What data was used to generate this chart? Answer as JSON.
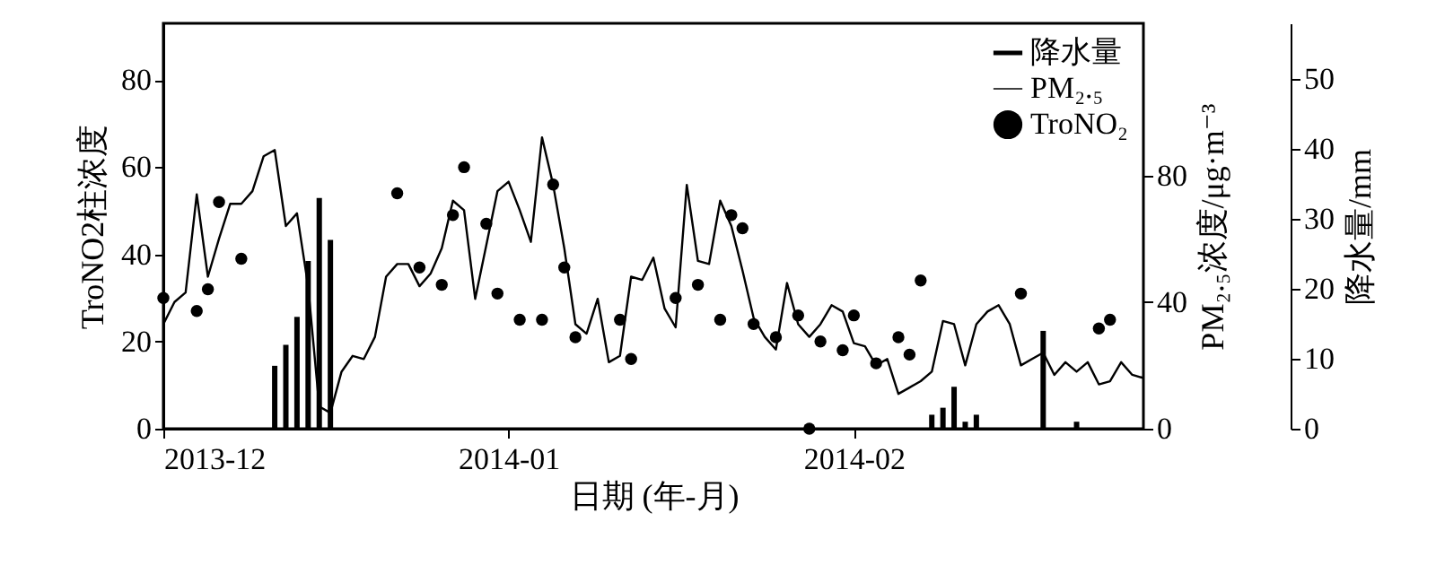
{
  "chart_data": {
    "type": "line",
    "xlabel": "日期 (年-月)",
    "ylabel": "TroNO2柱浓度",
    "y2label": "PM₂.₅浓度/μg·m⁻³",
    "y3label": "降水量/mm",
    "x": [
      "2013-12-01",
      "2013-12-02",
      "2013-12-03",
      "2013-12-04",
      "2013-12-05",
      "2013-12-06",
      "2013-12-07",
      "2013-12-08",
      "2013-12-09",
      "2013-12-10",
      "2013-12-11",
      "2013-12-12",
      "2013-12-13",
      "2013-12-14",
      "2013-12-15",
      "2013-12-16",
      "2013-12-17",
      "2013-12-18",
      "2013-12-19",
      "2013-12-20",
      "2013-12-21",
      "2013-12-22",
      "2013-12-23",
      "2013-12-24",
      "2013-12-25",
      "2013-12-26",
      "2013-12-27",
      "2013-12-28",
      "2013-12-29",
      "2013-12-30",
      "2013-12-31",
      "2014-01-01",
      "2014-01-02",
      "2014-01-03",
      "2014-01-04",
      "2014-01-05",
      "2014-01-06",
      "2014-01-07",
      "2014-01-08",
      "2014-01-09",
      "2014-01-10",
      "2014-01-11",
      "2014-01-12",
      "2014-01-13",
      "2014-01-14",
      "2014-01-15",
      "2014-01-16",
      "2014-01-17",
      "2014-01-18",
      "2014-01-19",
      "2014-01-20",
      "2014-01-21",
      "2014-01-22",
      "2014-01-23",
      "2014-01-24",
      "2014-01-25",
      "2014-01-26",
      "2014-01-27",
      "2014-01-28",
      "2014-01-29",
      "2014-01-30",
      "2014-01-31",
      "2014-02-01",
      "2014-02-02",
      "2014-02-03",
      "2014-02-04",
      "2014-02-05",
      "2014-02-06",
      "2014-02-07",
      "2014-02-08",
      "2014-02-09",
      "2014-02-10",
      "2014-02-11",
      "2014-02-12",
      "2014-02-13",
      "2014-02-14",
      "2014-02-15",
      "2014-02-16",
      "2014-02-17",
      "2014-02-18",
      "2014-02-19",
      "2014-02-20",
      "2014-02-21",
      "2014-02-22",
      "2014-02-23",
      "2014-02-24",
      "2014-02-25",
      "2014-02-26",
      "2014-02-27"
    ],
    "series": [
      {
        "name": "降水量",
        "type": "bar",
        "axis": "y3",
        "color": "#000000",
        "x": [
          "2013-12-11",
          "2013-12-12",
          "2013-12-13",
          "2013-12-14",
          "2013-12-15",
          "2013-12-16",
          "2014-02-08",
          "2014-02-09",
          "2014-02-10",
          "2014-02-11",
          "2014-02-12",
          "2014-02-18",
          "2014-02-21"
        ],
        "values": [
          9,
          12,
          16,
          24,
          33,
          27,
          2,
          3,
          6,
          1,
          2,
          14,
          1
        ]
      },
      {
        "name": "PM₂.₅",
        "axis": "y2",
        "color": "#000000",
        "values": [
          33,
          40,
          43,
          74,
          48,
          60,
          71,
          71,
          75,
          86,
          88,
          64,
          68,
          45,
          7,
          5,
          18,
          23,
          22,
          29,
          48,
          52,
          52,
          45,
          49,
          57,
          72,
          69,
          41,
          58,
          75,
          78,
          69,
          59,
          92,
          77,
          57,
          33,
          30,
          41,
          21,
          23,
          48,
          47,
          54,
          38,
          32,
          77,
          53,
          52,
          72,
          64,
          50,
          35,
          29,
          25,
          46,
          33,
          29,
          33,
          39,
          37,
          27,
          26,
          20,
          22,
          11,
          13,
          15,
          18,
          34,
          33,
          20,
          33,
          37,
          39,
          33,
          20,
          22,
          24,
          17,
          21,
          18,
          21,
          14,
          15,
          21,
          17,
          16
        ]
      },
      {
        "name": "TroNO₂",
        "type": "scatter",
        "marker": "circle",
        "color": "#000000",
        "x": [
          "2013-12-01",
          "2013-12-04",
          "2013-12-05",
          "2013-12-06",
          "2013-12-08",
          "2013-12-22",
          "2013-12-24",
          "2013-12-26",
          "2013-12-27",
          "2013-12-28",
          "2013-12-30",
          "2013-12-31",
          "2014-01-02",
          "2014-01-04",
          "2014-01-05",
          "2014-01-06",
          "2014-01-07",
          "2014-01-11",
          "2014-01-12",
          "2014-01-16",
          "2014-01-18",
          "2014-01-20",
          "2014-01-21",
          "2014-01-22",
          "2014-01-23",
          "2014-01-25",
          "2014-01-27",
          "2014-01-28",
          "2014-01-29",
          "2014-01-31",
          "2014-02-01",
          "2014-02-03",
          "2014-02-05",
          "2014-02-06",
          "2014-02-07",
          "2014-02-16",
          "2014-02-23",
          "2014-02-24"
        ],
        "values": [
          30,
          27,
          32,
          52,
          39,
          54,
          37,
          33,
          49,
          60,
          47,
          31,
          25,
          25,
          56,
          37,
          21,
          25,
          16,
          30,
          33,
          25,
          49,
          46,
          24,
          21,
          26,
          0,
          20,
          18,
          26,
          15,
          21,
          17,
          34,
          31,
          23,
          25
        ]
      }
    ],
    "xlim": [
      "2013-12-01",
      "2014-02-27"
    ],
    "xticks": [
      "2013-12",
      "2014-01",
      "2014-02"
    ],
    "ylim": [
      0,
      93
    ],
    "yticks": [
      0,
      20,
      40,
      60,
      80
    ],
    "y2lim": [
      0,
      128
    ],
    "y2ticks": [
      0,
      40,
      80
    ],
    "y3lim": [
      0,
      58
    ],
    "y3ticks": [
      0,
      10,
      20,
      30,
      40,
      50
    ],
    "legend": "top right"
  }
}
